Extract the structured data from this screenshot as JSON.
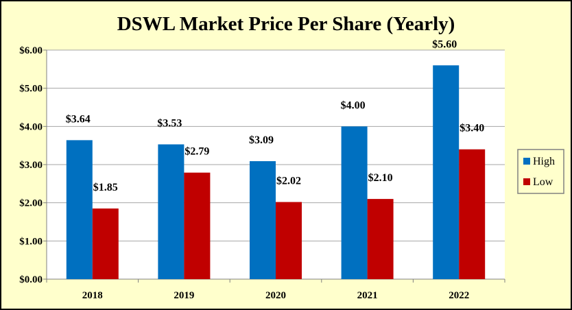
{
  "chart_data": {
    "type": "bar",
    "title": "DSWL Market Price Per Share (Yearly)",
    "xlabel": "",
    "ylabel": "",
    "categories": [
      "2018",
      "2019",
      "2020",
      "2021",
      "2022"
    ],
    "series": [
      {
        "name": "High",
        "color": "#0070c0",
        "values": [
          3.64,
          3.53,
          3.09,
          4.0,
          5.6
        ],
        "labels": [
          "$3.64",
          "$3.53",
          "$3.09",
          "$4.00",
          "$5.60"
        ]
      },
      {
        "name": "Low",
        "color": "#c00000",
        "values": [
          1.85,
          2.79,
          2.02,
          2.1,
          3.4
        ],
        "labels": [
          "$1.85",
          "$2.79",
          "$2.02",
          "$2.10",
          "$3.40"
        ]
      }
    ],
    "ylim": [
      0,
      6
    ],
    "yticks": [
      0,
      1,
      2,
      3,
      4,
      5,
      6
    ],
    "ytick_labels": [
      "$0.00",
      "$1.00",
      "$2.00",
      "$3.00",
      "$4.00",
      "$5.00",
      "$6.00"
    ],
    "grid": true,
    "legend_position": "right",
    "colors": {
      "chart_background": "#ffffcc",
      "plot_background": "#ffffff",
      "gridline": "#a6a6a6"
    }
  }
}
